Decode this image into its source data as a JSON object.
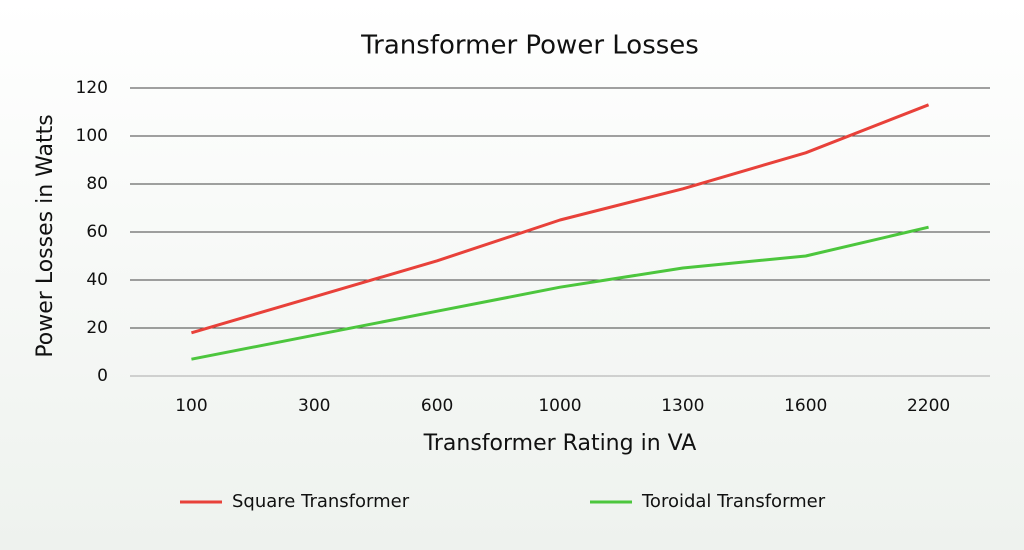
{
  "chart_data": {
    "type": "line",
    "title": "Transformer Power Losses",
    "x_label": "Transformer Rating in VA",
    "y_label": "Power Losses in Watts",
    "categories": [
      "100",
      "300",
      "600",
      "1000",
      "1300",
      "1600",
      "2200"
    ],
    "series": [
      {
        "name": "Square Transformer",
        "color": "#e8413a",
        "values": [
          18,
          33,
          48,
          65,
          78,
          93,
          113
        ]
      },
      {
        "name": "Toroidal Transformer",
        "color": "#4cc63d",
        "values": [
          7,
          17,
          27,
          37,
          45,
          50,
          62
        ]
      }
    ],
    "ylim": [
      0,
      120
    ],
    "yticks": [
      0,
      20,
      40,
      60,
      80,
      100,
      120
    ],
    "grid": true,
    "legend": "bottom"
  }
}
